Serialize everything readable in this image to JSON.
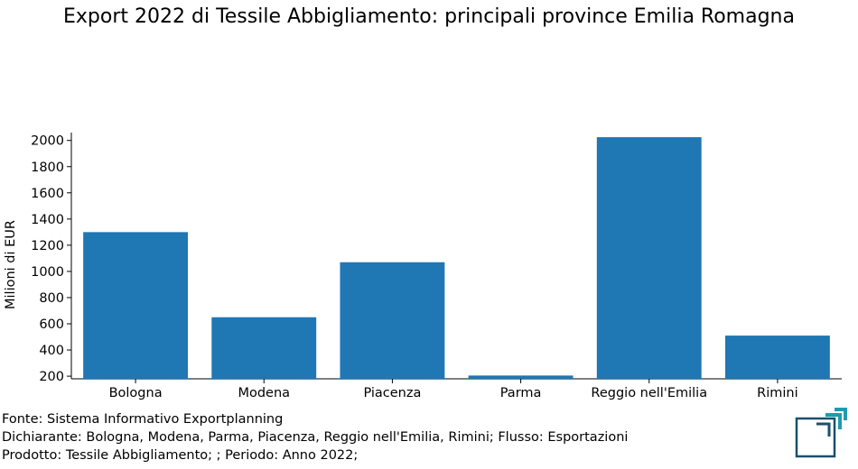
{
  "title": "Export 2022 di Tessile Abbigliamento: principali province Emilia Romagna",
  "chart_data": {
    "type": "bar",
    "categories": [
      "Bologna",
      "Modena",
      "Piacenza",
      "Parma",
      "Reggio nell'Emilia",
      "Rimini"
    ],
    "values": [
      1300,
      650,
      1070,
      205,
      2025,
      510
    ],
    "xlabel": "",
    "ylabel": "Milioni di EUR",
    "ylim": [
      180,
      2060
    ],
    "yticks": [
      200,
      400,
      600,
      800,
      1000,
      1200,
      1400,
      1600,
      1800,
      2000
    ],
    "bar_color": "#1f77b4",
    "grid": false,
    "legend": "none"
  },
  "footer": {
    "line1": "Fonte: Sistema Informativo Exportplanning",
    "line2": "Dichiarante: Bologna, Modena, Parma, Piacenza, Reggio nell'Emilia, Rimini; Flusso: Esportazioni",
    "line3": "Prodotto: Tessile Abbigliamento; ; Periodo: Anno 2022;"
  },
  "logo": {
    "icon": "exportplanning-logo-icon",
    "colors": [
      "#1f9bb0",
      "#1b4f6b"
    ]
  }
}
